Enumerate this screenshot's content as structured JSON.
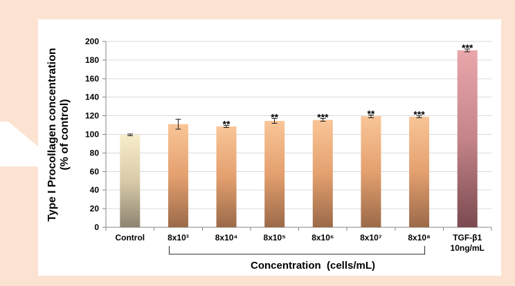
{
  "chart_data": {
    "type": "bar",
    "categories": [
      "Control",
      "8x10³",
      "8x10⁴",
      "8x10⁵",
      "8x10⁶",
      "8x10⁷",
      "8x10⁸",
      "TGF-β1\n10ng/mL"
    ],
    "values": [
      99.5,
      111,
      108.5,
      114.5,
      115.5,
      119.5,
      119,
      190.5
    ],
    "errors": [
      1,
      5.5,
      1,
      2.5,
      1.5,
      1.5,
      1,
      1.5
    ],
    "annotations": [
      null,
      null,
      "**",
      "**",
      "***",
      "**",
      "***",
      "***"
    ],
    "ylabel": [
      "Type I Procollagen concentration",
      "(% of control)"
    ],
    "xlabel": "Concentration  (cells/mL)",
    "xlabel_span": [
      1,
      6
    ],
    "ylim": [
      0,
      200
    ],
    "yticks": [
      0,
      20,
      40,
      60,
      80,
      100,
      120,
      140,
      160,
      180,
      200
    ],
    "grid": true,
    "bar_colors": [
      [
        "#f8ecca",
        "#d9cba9",
        "#8e8470"
      ],
      [
        "#f9c597",
        "#e4a06f",
        "#9b6a49"
      ],
      [
        "#f9c597",
        "#e4a06f",
        "#9b6a49"
      ],
      [
        "#f9c597",
        "#e4a06f",
        "#9b6a49"
      ],
      [
        "#f9c597",
        "#e4a06f",
        "#9b6a49"
      ],
      [
        "#f9c597",
        "#e4a06f",
        "#9b6a49"
      ],
      [
        "#f9c597",
        "#e4a06f",
        "#9b6a49"
      ],
      [
        "#e9a7ab",
        "#c48489",
        "#7a4a50"
      ]
    ]
  }
}
